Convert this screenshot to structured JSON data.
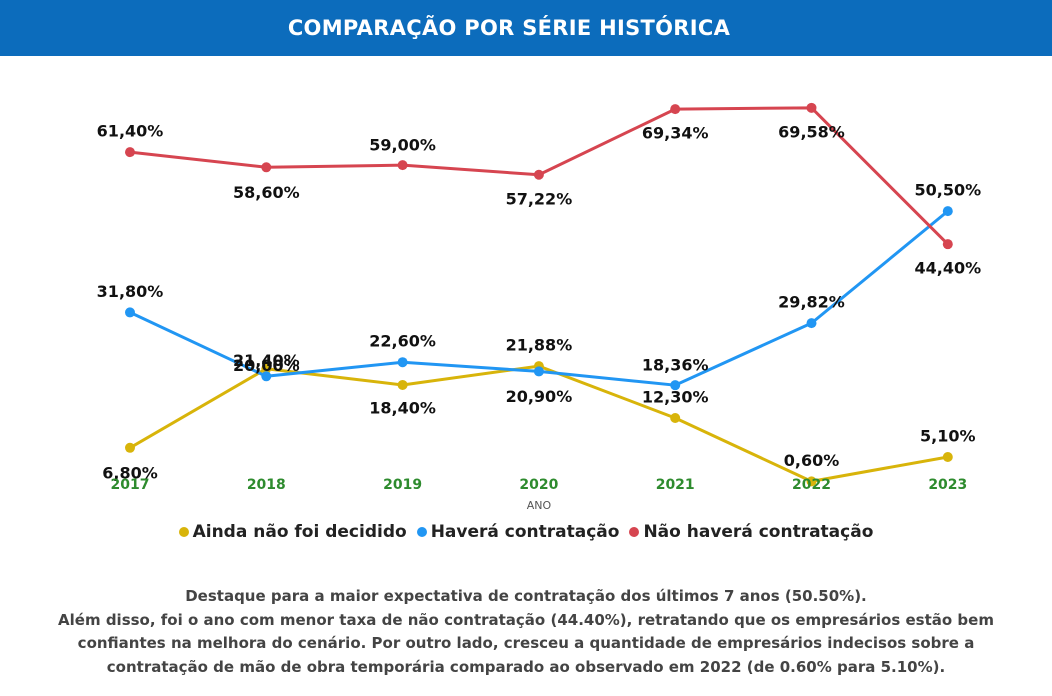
{
  "header": {
    "title": "COMPARAÇÃO POR SÉRIE HISTÓRICA"
  },
  "chart_data": {
    "type": "line",
    "title": "COMPARAÇÃO POR SÉRIE HISTÓRICA",
    "xlabel": "ANO",
    "ylabel": "",
    "x": [
      "2017",
      "2018",
      "2019",
      "2020",
      "2021",
      "2022",
      "2023"
    ],
    "ylim": [
      0,
      70
    ],
    "grid": false,
    "legend_position": "bottom",
    "series": [
      {
        "name": "Ainda não foi decidido",
        "color": "#d8b40a",
        "values": [
          6.8,
          21.4,
          18.4,
          21.88,
          12.3,
          0.6,
          5.1
        ],
        "labels": [
          "6,80%",
          "21,40%",
          "18,40%",
          "21,88%",
          "12,30%",
          "0,60%",
          "5,10%"
        ]
      },
      {
        "name": "Haverá contratação",
        "color": "#2196f3",
        "values": [
          31.8,
          20.0,
          22.6,
          20.9,
          18.36,
          29.82,
          50.5
        ],
        "labels": [
          "31,80%",
          "20,00%",
          "22,60%",
          "20,90%",
          "18,36%",
          "29,82%",
          "50,50%"
        ]
      },
      {
        "name": "Não haverá contratação",
        "color": "#d64550",
        "values": [
          61.4,
          58.6,
          59.0,
          57.22,
          69.34,
          69.58,
          44.4
        ],
        "labels": [
          "61,40%",
          "58,60%",
          "59,00%",
          "57,22%",
          "69,34%",
          "69,58%",
          "44,40%"
        ]
      }
    ],
    "tick_color": "#2e8b2e"
  },
  "legend": {
    "items": [
      {
        "label": "Ainda não foi decidido",
        "color": "#d8b40a"
      },
      {
        "label": "Haverá contratação",
        "color": "#2196f3"
      },
      {
        "label": "Não haverá contratação",
        "color": "#d64550"
      }
    ]
  },
  "note": {
    "lines": [
      "Destaque para a maior expectativa de contratação dos últimos 7 anos (50.50%).",
      "Além disso, foi o ano com menor taxa de não contratação (44.40%), retratando que os empresários estão bem",
      "confiantes na melhora do cenário. Por outro lado, cresceu a quantidade de empresários indecisos sobre a",
      "contratação de mão de obra temporária comparado ao observado em 2022 (de 0.60% para 5.10%)."
    ]
  }
}
